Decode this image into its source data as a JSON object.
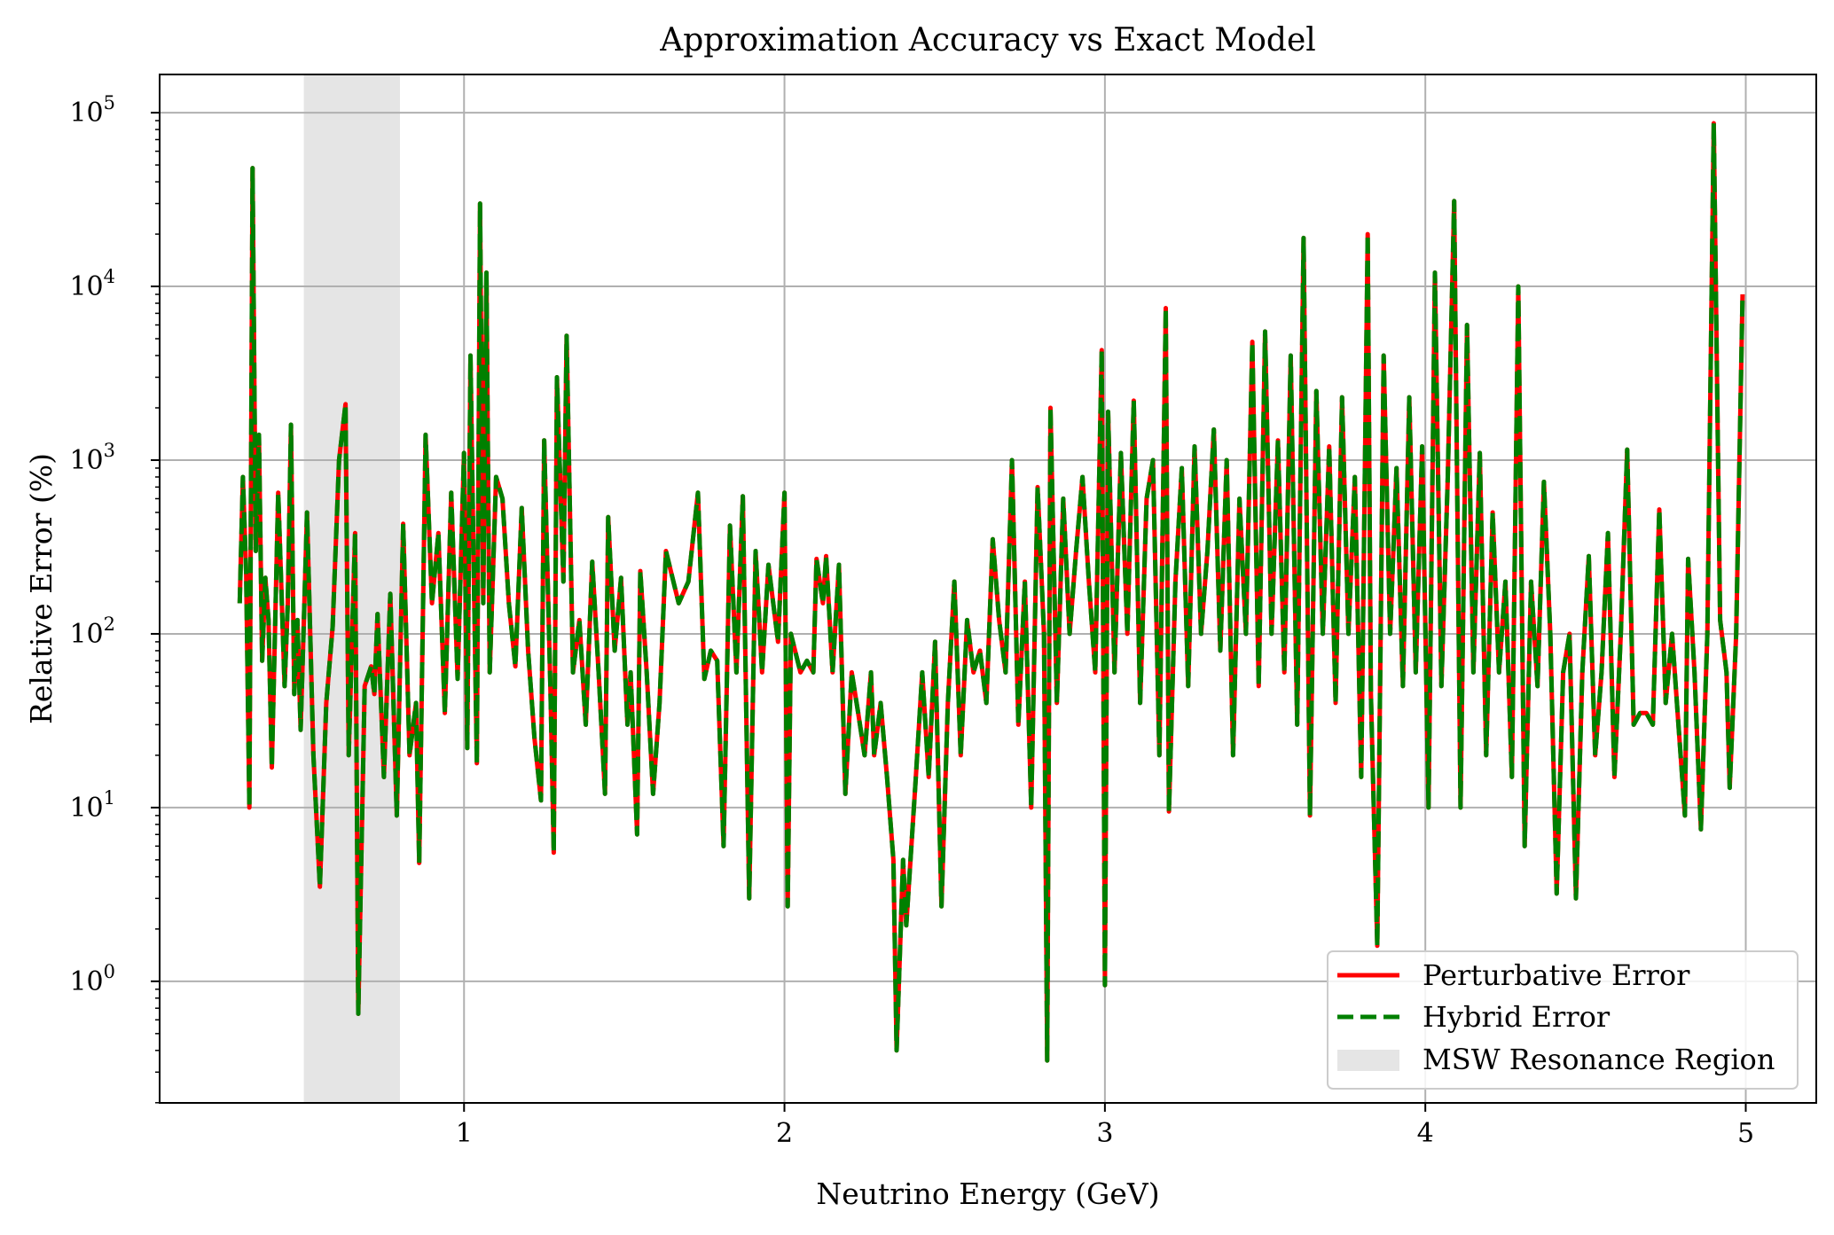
{
  "chart_data": {
    "type": "line",
    "title": "Approximation Accuracy vs Exact Model",
    "xlabel": "Neutrino Energy (GeV)",
    "ylabel": "Relative Error (%)",
    "xlim": [
      0.05,
      5.22
    ],
    "ylim_log10": [
      -0.7,
      5.22
    ],
    "yscale": "log",
    "grid": true,
    "legend_position": "lower-right",
    "x_ticks": [
      1,
      2,
      3,
      4,
      5
    ],
    "x_tick_labels": [
      "1",
      "2",
      "3",
      "4",
      "5"
    ],
    "y_ticks_log10": [
      0,
      1,
      2,
      3,
      4,
      5
    ],
    "shaded_region": {
      "label": "MSW Resonance Region",
      "x": [
        0.5,
        0.8
      ],
      "color": "#e5e5e5"
    },
    "series": [
      {
        "name": "Perturbative Error",
        "color": "#ff0000",
        "style": "solid",
        "points": [
          [
            0.3,
            150
          ],
          [
            0.31,
            800
          ],
          [
            0.32,
            220
          ],
          [
            0.33,
            10
          ],
          [
            0.34,
            48000
          ],
          [
            0.35,
            300
          ],
          [
            0.36,
            1400
          ],
          [
            0.37,
            70
          ],
          [
            0.38,
            210
          ],
          [
            0.39,
            120
          ],
          [
            0.4,
            17
          ],
          [
            0.42,
            650
          ],
          [
            0.44,
            50
          ],
          [
            0.45,
            150
          ],
          [
            0.46,
            1600
          ],
          [
            0.47,
            45
          ],
          [
            0.48,
            120
          ],
          [
            0.49,
            28
          ],
          [
            0.51,
            500
          ],
          [
            0.53,
            20
          ],
          [
            0.55,
            3.5
          ],
          [
            0.57,
            40
          ],
          [
            0.59,
            110
          ],
          [
            0.61,
            1000
          ],
          [
            0.63,
            2100
          ],
          [
            0.64,
            20
          ],
          [
            0.66,
            380
          ],
          [
            0.67,
            0.65
          ],
          [
            0.69,
            50
          ],
          [
            0.71,
            65
          ],
          [
            0.72,
            45
          ],
          [
            0.73,
            130
          ],
          [
            0.75,
            15
          ],
          [
            0.77,
            170
          ],
          [
            0.79,
            9
          ],
          [
            0.81,
            430
          ],
          [
            0.83,
            20
          ],
          [
            0.85,
            40
          ],
          [
            0.86,
            4.8
          ],
          [
            0.88,
            1400
          ],
          [
            0.9,
            150
          ],
          [
            0.92,
            380
          ],
          [
            0.94,
            35
          ],
          [
            0.96,
            650
          ],
          [
            0.98,
            55
          ],
          [
            1.0,
            1100
          ],
          [
            1.01,
            22
          ],
          [
            1.02,
            4000
          ],
          [
            1.03,
            250
          ],
          [
            1.04,
            18
          ],
          [
            1.05,
            30000
          ],
          [
            1.06,
            150
          ],
          [
            1.07,
            12000
          ],
          [
            1.08,
            60
          ],
          [
            1.1,
            800
          ],
          [
            1.12,
            600
          ],
          [
            1.14,
            150
          ],
          [
            1.16,
            65
          ],
          [
            1.18,
            530
          ],
          [
            1.2,
            80
          ],
          [
            1.22,
            25
          ],
          [
            1.24,
            11
          ],
          [
            1.25,
            1300
          ],
          [
            1.27,
            45
          ],
          [
            1.28,
            5.5
          ],
          [
            1.29,
            3000
          ],
          [
            1.31,
            200
          ],
          [
            1.32,
            5200
          ],
          [
            1.34,
            60
          ],
          [
            1.36,
            120
          ],
          [
            1.38,
            30
          ],
          [
            1.4,
            260
          ],
          [
            1.42,
            60
          ],
          [
            1.44,
            12
          ],
          [
            1.45,
            470
          ],
          [
            1.47,
            80
          ],
          [
            1.49,
            210
          ],
          [
            1.51,
            30
          ],
          [
            1.52,
            60
          ],
          [
            1.54,
            7
          ],
          [
            1.55,
            230
          ],
          [
            1.57,
            60
          ],
          [
            1.59,
            12
          ],
          [
            1.61,
            40
          ],
          [
            1.63,
            300
          ],
          [
            1.67,
            150
          ],
          [
            1.7,
            200
          ],
          [
            1.73,
            650
          ],
          [
            1.75,
            55
          ],
          [
            1.77,
            80
          ],
          [
            1.79,
            70
          ],
          [
            1.81,
            6
          ],
          [
            1.83,
            420
          ],
          [
            1.85,
            60
          ],
          [
            1.87,
            620
          ],
          [
            1.89,
            3
          ],
          [
            1.91,
            300
          ],
          [
            1.93,
            60
          ],
          [
            1.95,
            250
          ],
          [
            1.98,
            90
          ],
          [
            2.0,
            650
          ],
          [
            2.01,
            2.7
          ],
          [
            2.02,
            100
          ],
          [
            2.05,
            60
          ],
          [
            2.07,
            70
          ],
          [
            2.09,
            60
          ],
          [
            2.1,
            270
          ],
          [
            2.12,
            150
          ],
          [
            2.13,
            280
          ],
          [
            2.15,
            60
          ],
          [
            2.17,
            250
          ],
          [
            2.19,
            12
          ],
          [
            2.21,
            60
          ],
          [
            2.23,
            35
          ],
          [
            2.25,
            20
          ],
          [
            2.27,
            60
          ],
          [
            2.28,
            20
          ],
          [
            2.3,
            40
          ],
          [
            2.32,
            15
          ],
          [
            2.34,
            5
          ],
          [
            2.35,
            0.4
          ],
          [
            2.37,
            5
          ],
          [
            2.38,
            2.1
          ],
          [
            2.41,
            15
          ],
          [
            2.43,
            60
          ],
          [
            2.45,
            15
          ],
          [
            2.47,
            90
          ],
          [
            2.49,
            2.7
          ],
          [
            2.51,
            40
          ],
          [
            2.53,
            200
          ],
          [
            2.55,
            20
          ],
          [
            2.57,
            120
          ],
          [
            2.59,
            60
          ],
          [
            2.61,
            80
          ],
          [
            2.63,
            40
          ],
          [
            2.65,
            350
          ],
          [
            2.67,
            120
          ],
          [
            2.69,
            60
          ],
          [
            2.71,
            1000
          ],
          [
            2.73,
            30
          ],
          [
            2.75,
            200
          ],
          [
            2.77,
            10
          ],
          [
            2.79,
            700
          ],
          [
            2.81,
            100
          ],
          [
            2.82,
            0.35
          ],
          [
            2.83,
            2000
          ],
          [
            2.85,
            40
          ],
          [
            2.87,
            600
          ],
          [
            2.89,
            100
          ],
          [
            2.91,
            300
          ],
          [
            2.93,
            800
          ],
          [
            2.95,
            200
          ],
          [
            2.97,
            60
          ],
          [
            2.99,
            4300
          ],
          [
            3.0,
            0.95
          ],
          [
            3.01,
            1900
          ],
          [
            3.03,
            60
          ],
          [
            3.05,
            1100
          ],
          [
            3.07,
            100
          ],
          [
            3.09,
            2200
          ],
          [
            3.11,
            40
          ],
          [
            3.13,
            600
          ],
          [
            3.15,
            1000
          ],
          [
            3.17,
            20
          ],
          [
            3.19,
            7500
          ],
          [
            3.2,
            9.5
          ],
          [
            3.22,
            200
          ],
          [
            3.24,
            900
          ],
          [
            3.26,
            50
          ],
          [
            3.28,
            1200
          ],
          [
            3.3,
            100
          ],
          [
            3.32,
            300
          ],
          [
            3.34,
            1500
          ],
          [
            3.36,
            80
          ],
          [
            3.38,
            1000
          ],
          [
            3.4,
            20
          ],
          [
            3.42,
            600
          ],
          [
            3.44,
            100
          ],
          [
            3.46,
            4800
          ],
          [
            3.48,
            50
          ],
          [
            3.5,
            5500
          ],
          [
            3.52,
            100
          ],
          [
            3.54,
            1300
          ],
          [
            3.56,
            60
          ],
          [
            3.58,
            4000
          ],
          [
            3.6,
            30
          ],
          [
            3.62,
            19000
          ],
          [
            3.64,
            9
          ],
          [
            3.66,
            2500
          ],
          [
            3.68,
            100
          ],
          [
            3.7,
            1200
          ],
          [
            3.72,
            40
          ],
          [
            3.74,
            2300
          ],
          [
            3.76,
            100
          ],
          [
            3.78,
            800
          ],
          [
            3.8,
            15
          ],
          [
            3.82,
            20000
          ],
          [
            3.83,
            45
          ],
          [
            3.85,
            1.6
          ],
          [
            3.87,
            4000
          ],
          [
            3.89,
            100
          ],
          [
            3.91,
            900
          ],
          [
            3.93,
            50
          ],
          [
            3.95,
            2300
          ],
          [
            3.97,
            60
          ],
          [
            3.99,
            1200
          ],
          [
            4.01,
            10
          ],
          [
            4.03,
            12000
          ],
          [
            4.05,
            50
          ],
          [
            4.07,
            800
          ],
          [
            4.09,
            31000
          ],
          [
            4.11,
            10
          ],
          [
            4.13,
            6000
          ],
          [
            4.15,
            60
          ],
          [
            4.17,
            1100
          ],
          [
            4.19,
            20
          ],
          [
            4.21,
            500
          ],
          [
            4.23,
            60
          ],
          [
            4.25,
            200
          ],
          [
            4.27,
            15
          ],
          [
            4.29,
            10000
          ],
          [
            4.31,
            6
          ],
          [
            4.33,
            200
          ],
          [
            4.35,
            50
          ],
          [
            4.37,
            750
          ],
          [
            4.39,
            100
          ],
          [
            4.41,
            3.2
          ],
          [
            4.43,
            60
          ],
          [
            4.45,
            100
          ],
          [
            4.47,
            3
          ],
          [
            4.49,
            60
          ],
          [
            4.51,
            280
          ],
          [
            4.53,
            20
          ],
          [
            4.55,
            60
          ],
          [
            4.57,
            380
          ],
          [
            4.59,
            15
          ],
          [
            4.61,
            100
          ],
          [
            4.63,
            1150
          ],
          [
            4.65,
            30
          ],
          [
            4.67,
            35
          ],
          [
            4.69,
            35
          ],
          [
            4.71,
            30
          ],
          [
            4.73,
            520
          ],
          [
            4.75,
            40
          ],
          [
            4.77,
            100
          ],
          [
            4.79,
            30
          ],
          [
            4.81,
            9
          ],
          [
            4.82,
            270
          ],
          [
            4.84,
            60
          ],
          [
            4.86,
            7.5
          ],
          [
            4.88,
            100
          ],
          [
            4.9,
            87000
          ],
          [
            4.92,
            120
          ],
          [
            4.94,
            60
          ],
          [
            4.95,
            13
          ],
          [
            4.97,
            100
          ],
          [
            4.99,
            9000
          ]
        ]
      },
      {
        "name": "Hybrid Error",
        "color": "#008000",
        "style": "dashed",
        "same_as": "Perturbative Error"
      }
    ]
  },
  "legend": {
    "items": [
      {
        "label": "Perturbative Error",
        "kind": "line",
        "color": "#ff0000"
      },
      {
        "label": "Hybrid Error",
        "kind": "dashed",
        "color": "#008000"
      },
      {
        "label": "MSW Resonance Region",
        "kind": "patch",
        "color": "#e5e5e5"
      }
    ]
  }
}
